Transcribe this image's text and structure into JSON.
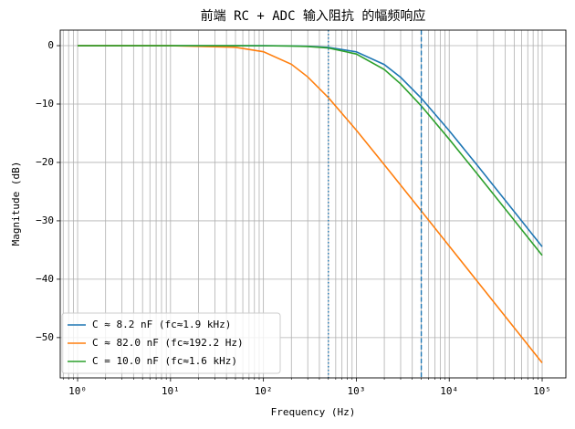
{
  "chart_data": {
    "type": "line",
    "title": "前端 RC + ADC 输入阻抗 的幅频响应",
    "xlabel": "Frequency (Hz)",
    "ylabel": "Magnitude (dB)",
    "xscale": "log",
    "grid": true,
    "legend": "lower left",
    "x": [
      1,
      10,
      50,
      100,
      200,
      300,
      500,
      1000,
      2000,
      3000,
      5000,
      10000,
      20000,
      50000,
      100000
    ],
    "series": [
      {
        "name": "C ≈ 8.2 nF (fc≈1.9 kHz)",
        "color": "#1f77b4",
        "values": [
          0,
          0,
          -0.003,
          -0.012,
          -0.048,
          -0.107,
          -0.29,
          -1.06,
          -3.24,
          -5.43,
          -8.99,
          -14.58,
          -20.48,
          -28.41,
          -34.43
        ]
      },
      {
        "name": "C ≈ 82.0 nF (fc≈192.2 Hz)",
        "color": "#ff7f0e",
        "values": [
          0,
          -0.012,
          -0.28,
          -1.04,
          -3.19,
          -5.36,
          -8.9,
          -14.48,
          -20.39,
          -23.89,
          -28.31,
          -34.33,
          -40.35,
          -48.3,
          -54.32
        ]
      },
      {
        "name": "C = 10.0 nF (fc≈1.6 kHz)",
        "color": "#2ca02c",
        "values": [
          0,
          0,
          -0.004,
          -0.017,
          -0.067,
          -0.15,
          -0.4,
          -1.43,
          -4.09,
          -6.55,
          -10.32,
          -16.03,
          -21.97,
          -29.9,
          -35.92
        ]
      }
    ],
    "vlines": [
      {
        "x": 500,
        "style": "dotted",
        "color": "#1f77b4"
      },
      {
        "x": 5000,
        "style": "dashed",
        "color": "#1f77b4"
      }
    ],
    "xlim": [
      0.65,
      180000
    ],
    "ylim": [
      -56.9,
      2.66
    ],
    "xticks": [
      {
        "value": 1,
        "label": "10⁰"
      },
      {
        "value": 10,
        "label": "10¹"
      },
      {
        "value": 100,
        "label": "10²"
      },
      {
        "value": 1000,
        "label": "10³"
      },
      {
        "value": 10000,
        "label": "10⁴"
      },
      {
        "value": 100000,
        "label": "10⁵"
      }
    ],
    "xminorticks": [
      0.7,
      0.8,
      0.9,
      2,
      3,
      4,
      5,
      6,
      7,
      8,
      9,
      20,
      30,
      40,
      50,
      60,
      70,
      80,
      90,
      200,
      300,
      400,
      500,
      600,
      700,
      800,
      900,
      2000,
      3000,
      4000,
      5000,
      6000,
      7000,
      8000,
      9000,
      20000,
      30000,
      40000,
      50000,
      60000,
      70000,
      80000,
      90000
    ],
    "yticks": [
      {
        "value": -50,
        "label": "−50"
      },
      {
        "value": -40,
        "label": "−40"
      },
      {
        "value": -30,
        "label": "−30"
      },
      {
        "value": -20,
        "label": "−20"
      },
      {
        "value": -10,
        "label": "−10"
      },
      0
    ]
  }
}
